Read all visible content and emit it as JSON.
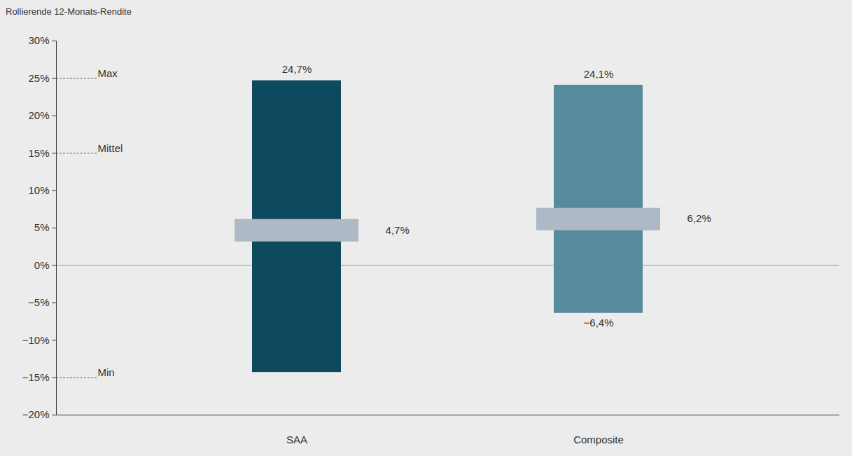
{
  "chart_data": {
    "type": "range_bar",
    "y_label": "Rollierende 12-Monats-Rendite",
    "categories": [
      "SAA",
      "Composite"
    ],
    "max": [
      24.7,
      24.1
    ],
    "max_labels": [
      "24,7%",
      "24,1%"
    ],
    "min": [
      -14.3,
      -6.4
    ],
    "min_labels": [
      null,
      "−6,4%"
    ],
    "mean": [
      4.7,
      6.2
    ],
    "mean_labels": [
      "4,7%",
      "6,2%"
    ],
    "colors": [
      "#0e4a5e",
      "#568a9c"
    ],
    "mean_color": "#adb9c5",
    "data_labels": true,
    "grid": false,
    "annotations": [
      {
        "text": "Max",
        "y": 25
      },
      {
        "text": "Mittel",
        "y": 15
      },
      {
        "text": "Min",
        "y": -15
      }
    ],
    "ylim": [
      -20,
      30
    ],
    "yticks": [
      {
        "value": 30,
        "label": "30%"
      },
      {
        "value": 25,
        "label": "25%"
      },
      {
        "value": 20,
        "label": "20%"
      },
      {
        "value": 15,
        "label": "15%"
      },
      {
        "value": 10,
        "label": "10%"
      },
      {
        "value": 5,
        "label": "5%"
      },
      {
        "value": 0,
        "label": "0%"
      },
      {
        "value": -5,
        "label": "−5%"
      },
      {
        "value": -10,
        "label": "−10%"
      },
      {
        "value": -15,
        "label": "−15%"
      },
      {
        "value": -20,
        "label": "−20%"
      }
    ]
  }
}
